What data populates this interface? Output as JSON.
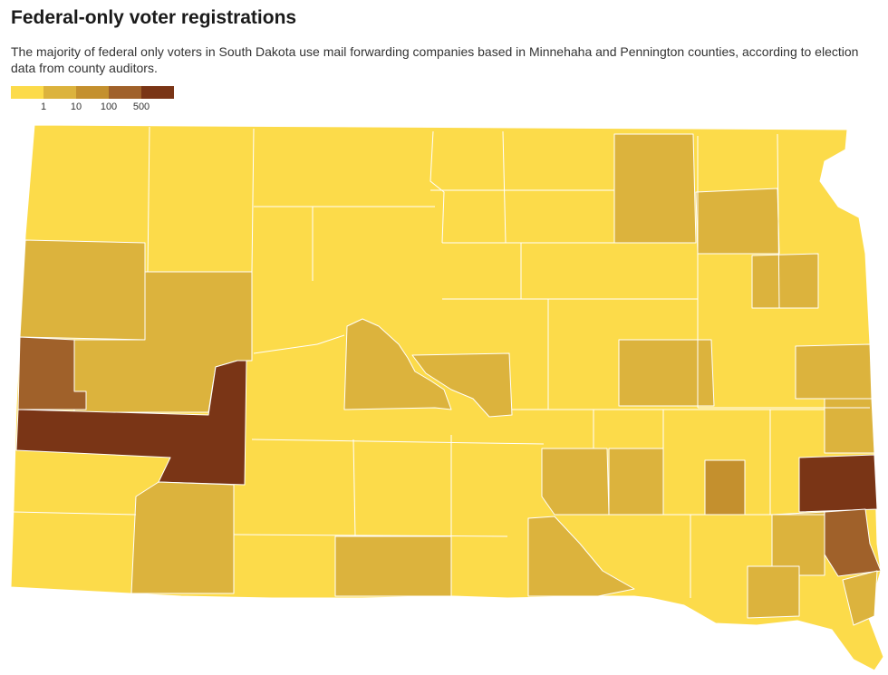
{
  "header": {
    "title": "Federal-only voter registrations",
    "subtitle": "The majority of federal only voters in South Dakota use mail forwarding companies based in Minnehaha and Pennington counties, according to election data from county auditors."
  },
  "legend": {
    "swatches": [
      {
        "color": "#fcdb4a"
      },
      {
        "color": "#dcb33d"
      },
      {
        "color": "#c4902e"
      },
      {
        "color": "#a0612a"
      },
      {
        "color": "#7a3516"
      }
    ],
    "labels": [
      "1",
      "10",
      "100",
      "500"
    ]
  },
  "map": {
    "state": "South Dakota",
    "classes": {
      "c0": "#fcdb4a",
      "c1": "#dcb33d",
      "c2": "#c4902e",
      "c3": "#a0612a",
      "c4": "#7a3516"
    }
  }
}
